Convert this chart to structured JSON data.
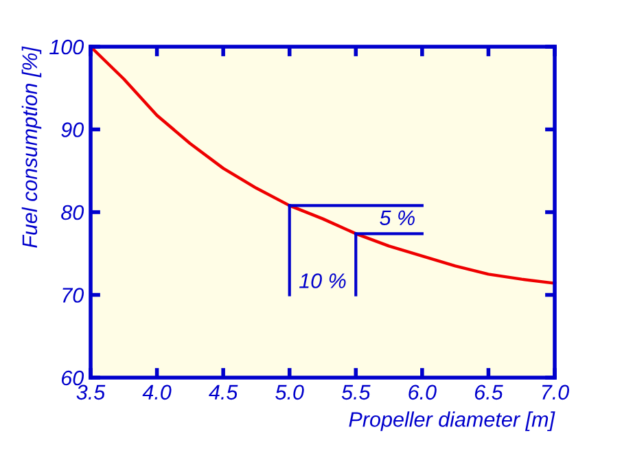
{
  "chart_data": {
    "type": "line",
    "xlabel": "Propeller diameter [m]",
    "ylabel": "Fuel consumption [%]",
    "x": [
      3.5,
      3.75,
      4.0,
      4.25,
      4.5,
      4.75,
      5.0,
      5.25,
      5.5,
      5.75,
      6.0,
      6.25,
      6.5,
      6.75,
      7.0
    ],
    "series": [
      {
        "color": "#ee0000",
        "values": [
          100,
          96.1,
          91.7,
          88.3,
          85.3,
          82.9,
          80.8,
          79.2,
          77.4,
          75.9,
          74.7,
          73.5,
          72.5,
          71.9,
          71.4
        ]
      }
    ],
    "xlim": [
      3.5,
      7.0
    ],
    "xticks": [
      {
        "value": 3.5,
        "label": "3.5"
      },
      {
        "value": 4.0,
        "label": "4.0"
      },
      {
        "value": 4.5,
        "label": "4.5"
      },
      {
        "value": 5.0,
        "label": "5.0"
      },
      {
        "value": 5.5,
        "label": "5.5"
      },
      {
        "value": 6.0,
        "label": "6.0"
      },
      {
        "value": 6.5,
        "label": "6.5"
      },
      {
        "value": 7.0,
        "label": "7.0"
      }
    ],
    "ylim": [
      60,
      100
    ],
    "yticks": [
      60,
      70,
      80,
      90,
      100
    ],
    "annotations": [
      {
        "text": "10 %",
        "x": 5.0,
        "y": 80.8
      },
      {
        "text": "5 %",
        "x": 5.5,
        "y": 77.4
      }
    ],
    "grid": false,
    "legend": false,
    "marker": "none",
    "line_style": "solid"
  }
}
